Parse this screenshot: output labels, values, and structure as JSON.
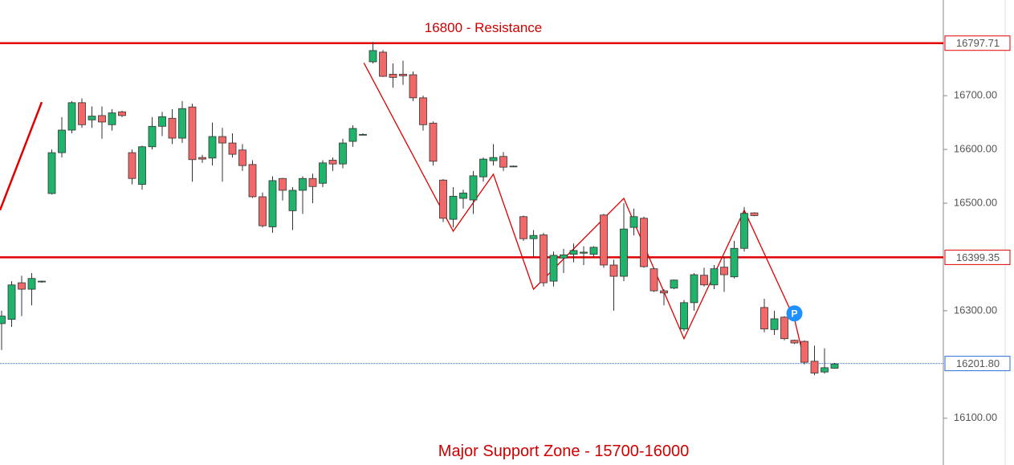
{
  "chart_data": {
    "type": "candlestick",
    "categories": [
      null,
      null,
      null,
      null,
      null,
      null,
      null,
      null,
      null,
      null,
      null,
      null,
      null,
      null,
      null,
      null,
      null,
      null,
      null,
      null,
      null,
      null,
      null,
      null,
      null,
      null,
      null,
      null,
      null,
      null,
      null,
      null,
      null,
      null,
      null,
      null,
      null,
      null,
      null,
      null,
      null,
      null,
      null,
      null,
      null,
      null,
      null,
      null,
      null,
      null,
      null,
      null,
      null,
      null,
      null,
      null,
      null,
      null,
      null,
      null,
      null,
      null,
      null,
      null,
      null,
      null,
      null,
      null,
      null,
      null,
      null,
      null,
      null,
      null,
      null,
      null,
      null,
      null,
      null,
      null,
      null,
      null,
      null,
      null
    ],
    "open": [
      16276,
      16284,
      16352,
      16340,
      16354,
      16518,
      16594,
      16636,
      16687,
      16655,
      16663,
      16646,
      16670,
      16594,
      16535,
      16605,
      16643,
      16658,
      16621,
      16679,
      16585,
      16584,
      16624,
      16612,
      16599,
      16572,
      16512,
      16456,
      16546,
      16486,
      16524,
      16546,
      16537,
      16580,
      16573,
      16615,
      16628,
      16763,
      16781,
      16740,
      16740,
      16739,
      16696,
      16649,
      16543,
      16470,
      16509,
      16506,
      16549,
      16579,
      16587,
      16569,
      16475,
      16434,
      16441,
      16355,
      16398,
      16405,
      16407,
      16405,
      16478,
      16385,
      16364,
      16455,
      16472,
      16378,
      16337,
      16342,
      16266,
      16315,
      16366,
      16348,
      16381,
      16363,
      16416,
      16482,
      16306,
      16265,
      16288,
      16245,
      16243,
      16206,
      16186,
      16193
    ],
    "high": [
      16300,
      16355,
      16365,
      16370,
      16356,
      16600,
      16660,
      16690,
      16695,
      16680,
      16680,
      16675,
      16672,
      16600,
      16607,
      16660,
      16670,
      16675,
      16690,
      16685,
      16590,
      16650,
      16640,
      16630,
      16610,
      16580,
      16520,
      16550,
      16547,
      16530,
      16550,
      16555,
      16580,
      16585,
      16620,
      16645,
      16630,
      16800,
      16785,
      16760,
      16765,
      16745,
      16700,
      16652,
      16545,
      16530,
      16525,
      16560,
      16585,
      16610,
      16595,
      16570,
      16477,
      16450,
      16445,
      16410,
      16415,
      16425,
      16420,
      16420,
      16480,
      16395,
      16500,
      16490,
      16475,
      16380,
      16340,
      16358,
      16320,
      16370,
      16380,
      16385,
      16400,
      16430,
      16493,
      16483,
      16322,
      16300,
      16290,
      16246,
      16245,
      16235,
      16230,
      16203
    ],
    "low": [
      16227,
      16270,
      16290,
      16310,
      16352,
      16516,
      16585,
      16630,
      16640,
      16640,
      16620,
      16635,
      16660,
      16535,
      16525,
      16600,
      16625,
      16610,
      16612,
      16540,
      16575,
      16570,
      16540,
      16585,
      16560,
      16510,
      16455,
      16445,
      16505,
      16450,
      16480,
      16500,
      16530,
      16560,
      16565,
      16605,
      16626,
      16760,
      16735,
      16715,
      16720,
      16690,
      16635,
      16570,
      16465,
      16455,
      16490,
      16480,
      16540,
      16570,
      16560,
      16567,
      16430,
      16400,
      16345,
      16345,
      16370,
      16390,
      16385,
      16400,
      16380,
      16300,
      16355,
      16440,
      16380,
      16335,
      16310,
      16340,
      16262,
      16300,
      16345,
      16340,
      16335,
      16360,
      16410,
      16476,
      16260,
      16255,
      16245,
      16238,
      16200,
      16180,
      16183,
      16192
    ],
    "close": [
      16290,
      16348,
      16340,
      16360,
      16355,
      16594,
      16636,
      16687,
      16646,
      16662,
      16651,
      16668,
      16663,
      16546,
      16605,
      16643,
      16661,
      16621,
      16676,
      16581,
      16582,
      16624,
      16612,
      16591,
      16570,
      16512,
      16458,
      16542,
      16524,
      16524,
      16546,
      16531,
      16575,
      16573,
      16612,
      16639,
      16628,
      16784,
      16736,
      16734,
      16737,
      16696,
      16646,
      16578,
      16472,
      16513,
      16519,
      16551,
      16582,
      16585,
      16567,
      16569,
      16434,
      16440,
      16352,
      16403,
      16404,
      16412,
      16409,
      16418,
      16385,
      16364,
      16452,
      16475,
      16382,
      16337,
      16333,
      16357,
      16315,
      16367,
      16348,
      16378,
      16367,
      16416,
      16481,
      16477,
      16266,
      16285,
      16248,
      16240,
      16204,
      16184,
      16194,
      16201
    ],
    "up_color": "#1fb36c",
    "down_color": "#f06868",
    "ylim": [
      16013,
      16878
    ],
    "yticks": [
      {
        "value": 16100,
        "label": "16100.00"
      },
      {
        "value": 16300,
        "label": "16300.00"
      },
      {
        "value": 16500,
        "label": "16500.00"
      },
      {
        "value": 16600,
        "label": "16600.00"
      },
      {
        "value": 16700,
        "label": "16700.00"
      }
    ],
    "levels": [
      {
        "value": 16797.71,
        "label": "16797.71",
        "color": "#e00000",
        "style": "solid"
      },
      {
        "value": 16399.35,
        "label": "16399.35",
        "color": "#e00000",
        "style": "solid"
      },
      {
        "value": 16201.8,
        "label": "16201.80",
        "color": "#2a6fdb",
        "style": "dotted"
      }
    ],
    "trendlines": [
      {
        "x": [
          -0.16,
          4
        ],
        "values": [
          16487,
          16688
        ],
        "color": "#e00000"
      },
      {
        "x": [
          36.1,
          45,
          49,
          53,
          62,
          68,
          74,
          79,
          80
        ],
        "values": [
          16761,
          16448,
          16554,
          16340,
          16509,
          16248,
          16487,
          16285,
          16206
        ],
        "color": "#e00000"
      }
    ],
    "marker": {
      "x": 79,
      "value": 16295,
      "label": "P",
      "color": "#1e90ff"
    },
    "annotations": [
      {
        "text": "16800 - Resistance",
        "x": 48,
        "value": 16825
      },
      {
        "text": "Major Support Zone - 15700-16000",
        "x": 56,
        "value": 16037
      }
    ]
  }
}
